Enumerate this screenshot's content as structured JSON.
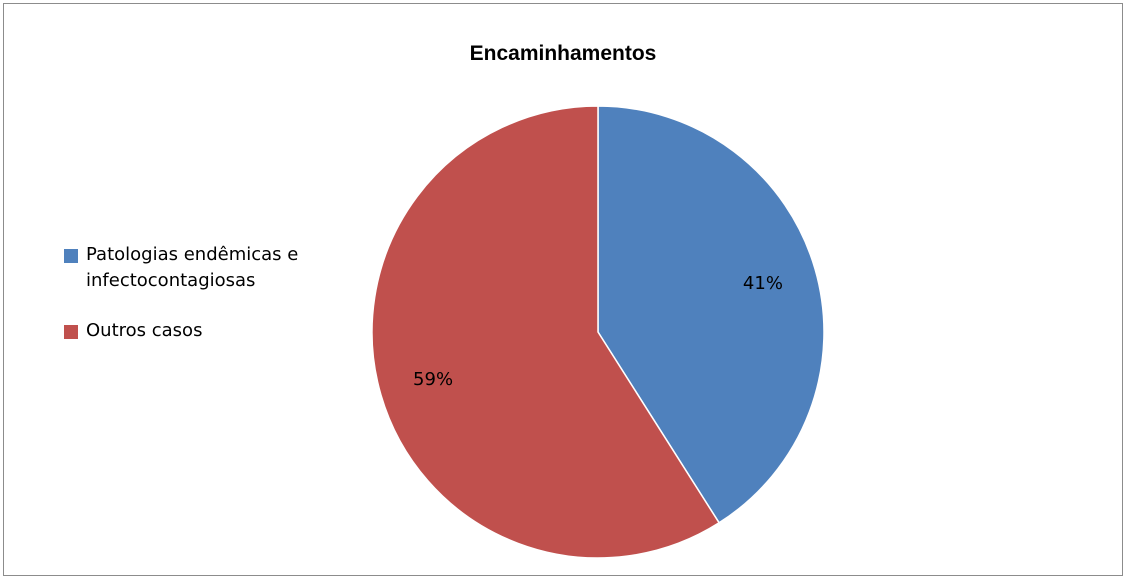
{
  "chart_data": {
    "type": "pie",
    "title": "Encaminhamentos",
    "categories": [
      "Patologias endêmicas e infectocontagiosas",
      "Outros casos"
    ],
    "values": [
      41,
      59
    ],
    "labels": [
      "41%",
      "59%"
    ],
    "colors": [
      "#4f81bd",
      "#c0504d"
    ],
    "legend_position": "left"
  }
}
